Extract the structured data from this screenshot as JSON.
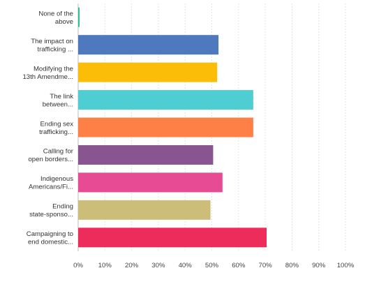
{
  "chart_data": {
    "type": "bar",
    "orientation": "horizontal",
    "categories": [
      [
        "None of the",
        "above"
      ],
      [
        "The impact on",
        "trafficking ..."
      ],
      [
        "Modifying the",
        "13th Amendme..."
      ],
      [
        "The link",
        "between..."
      ],
      [
        "Ending sex",
        "trafficking..."
      ],
      [
        "Calling for",
        "open borders..."
      ],
      [
        "Indigenous",
        "Americans/Fi..."
      ],
      [
        "Ending",
        "state-sponso..."
      ],
      [
        "Campaigning to",
        "end domestic..."
      ]
    ],
    "values": [
      0.5,
      52.5,
      52.0,
      65.5,
      65.5,
      50.5,
      54.0,
      49.5,
      70.5
    ],
    "colors": [
      "#2bc48a",
      "#4f79bd",
      "#fbbd08",
      "#4ecdd3",
      "#ff8047",
      "#895590",
      "#e64b93",
      "#ccbe78",
      "#ee2c5b"
    ],
    "x_ticks": [
      "0%",
      "10%",
      "20%",
      "30%",
      "40%",
      "50%",
      "60%",
      "70%",
      "80%",
      "90%",
      "100%"
    ],
    "xlim": [
      0,
      100
    ],
    "grid": true,
    "title": "",
    "xlabel": "",
    "ylabel": ""
  }
}
